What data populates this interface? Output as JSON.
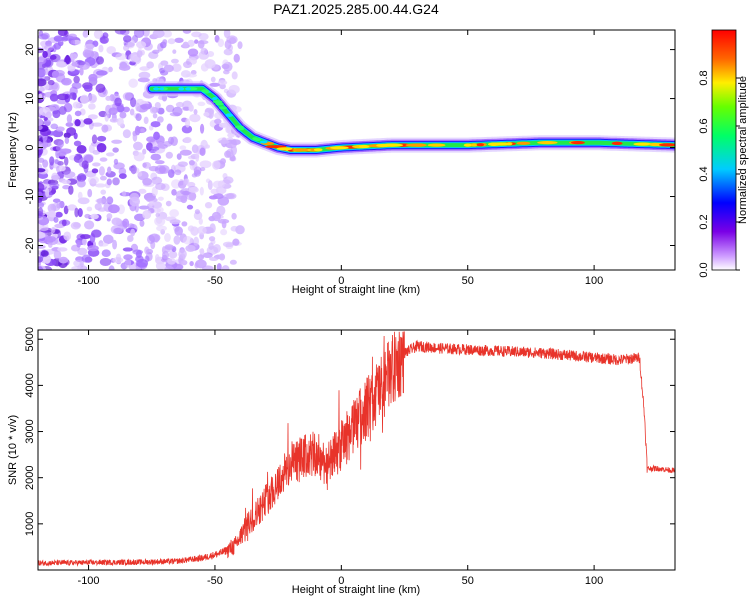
{
  "title": "PAZ1.2025.285.00.44.G24",
  "colors": {
    "snr_line": "#e8332a",
    "axis": "#000000",
    "background": "#ffffff"
  },
  "chart_data": [
    {
      "type": "heatmap",
      "name": "spectrogram",
      "title": "PAZ1.2025.285.00.44.G24",
      "xlabel": "Height of straight line (km)",
      "ylabel": "Frequency (Hz)",
      "xlim": [
        -120,
        132
      ],
      "ylim": [
        -25,
        24
      ],
      "x_ticks": [
        -100,
        -50,
        0,
        50,
        100
      ],
      "y_ticks": [
        -20,
        -10,
        0,
        10,
        20
      ],
      "dominant_frequency_ridge": {
        "x": [
          -75,
          -65,
          -55,
          -50,
          -45,
          -40,
          -35,
          -30,
          -25,
          -20,
          -10,
          0,
          20,
          50,
          80,
          100,
          132
        ],
        "y": [
          12,
          12,
          12,
          10,
          7,
          4,
          2,
          1,
          0,
          -0.5,
          -0.5,
          0,
          0.5,
          0.5,
          1,
          1,
          0.5
        ]
      },
      "noise_region_x": [
        -120,
        -50
      ],
      "colorbar": {
        "label": "Normalized spectral amplitude",
        "range": [
          0,
          1
        ],
        "ticks": [
          0.0,
          0.2,
          0.4,
          0.6,
          0.8
        ],
        "tick_labels": [
          "0.0",
          "0.2",
          "0.4",
          "0.6",
          "0.8"
        ],
        "colormap": "rainbow"
      }
    },
    {
      "type": "line",
      "name": "snr",
      "xlabel": "Height of straight line (km)",
      "ylabel": "SNR (10 * v/v)",
      "xlim": [
        -120,
        132
      ],
      "ylim": [
        0,
        5200
      ],
      "x_ticks": [
        -100,
        -50,
        0,
        50,
        100
      ],
      "y_ticks": [
        1000,
        2000,
        3000,
        4000,
        5000
      ],
      "series": [
        {
          "name": "SNR",
          "x": [
            -120,
            -100,
            -80,
            -65,
            -55,
            -48,
            -42,
            -38,
            -30,
            -20,
            -12,
            -5,
            0,
            10,
            20,
            25,
            30,
            40,
            60,
            80,
            100,
            110,
            118,
            120,
            121,
            125,
            132
          ],
          "values": [
            150,
            160,
            170,
            190,
            260,
            360,
            520,
            900,
            1500,
            2300,
            2500,
            2300,
            2700,
            3500,
            4300,
            4700,
            4850,
            4800,
            4750,
            4700,
            4600,
            4550,
            4600,
            3300,
            2200,
            2200,
            2150
          ]
        }
      ]
    }
  ]
}
